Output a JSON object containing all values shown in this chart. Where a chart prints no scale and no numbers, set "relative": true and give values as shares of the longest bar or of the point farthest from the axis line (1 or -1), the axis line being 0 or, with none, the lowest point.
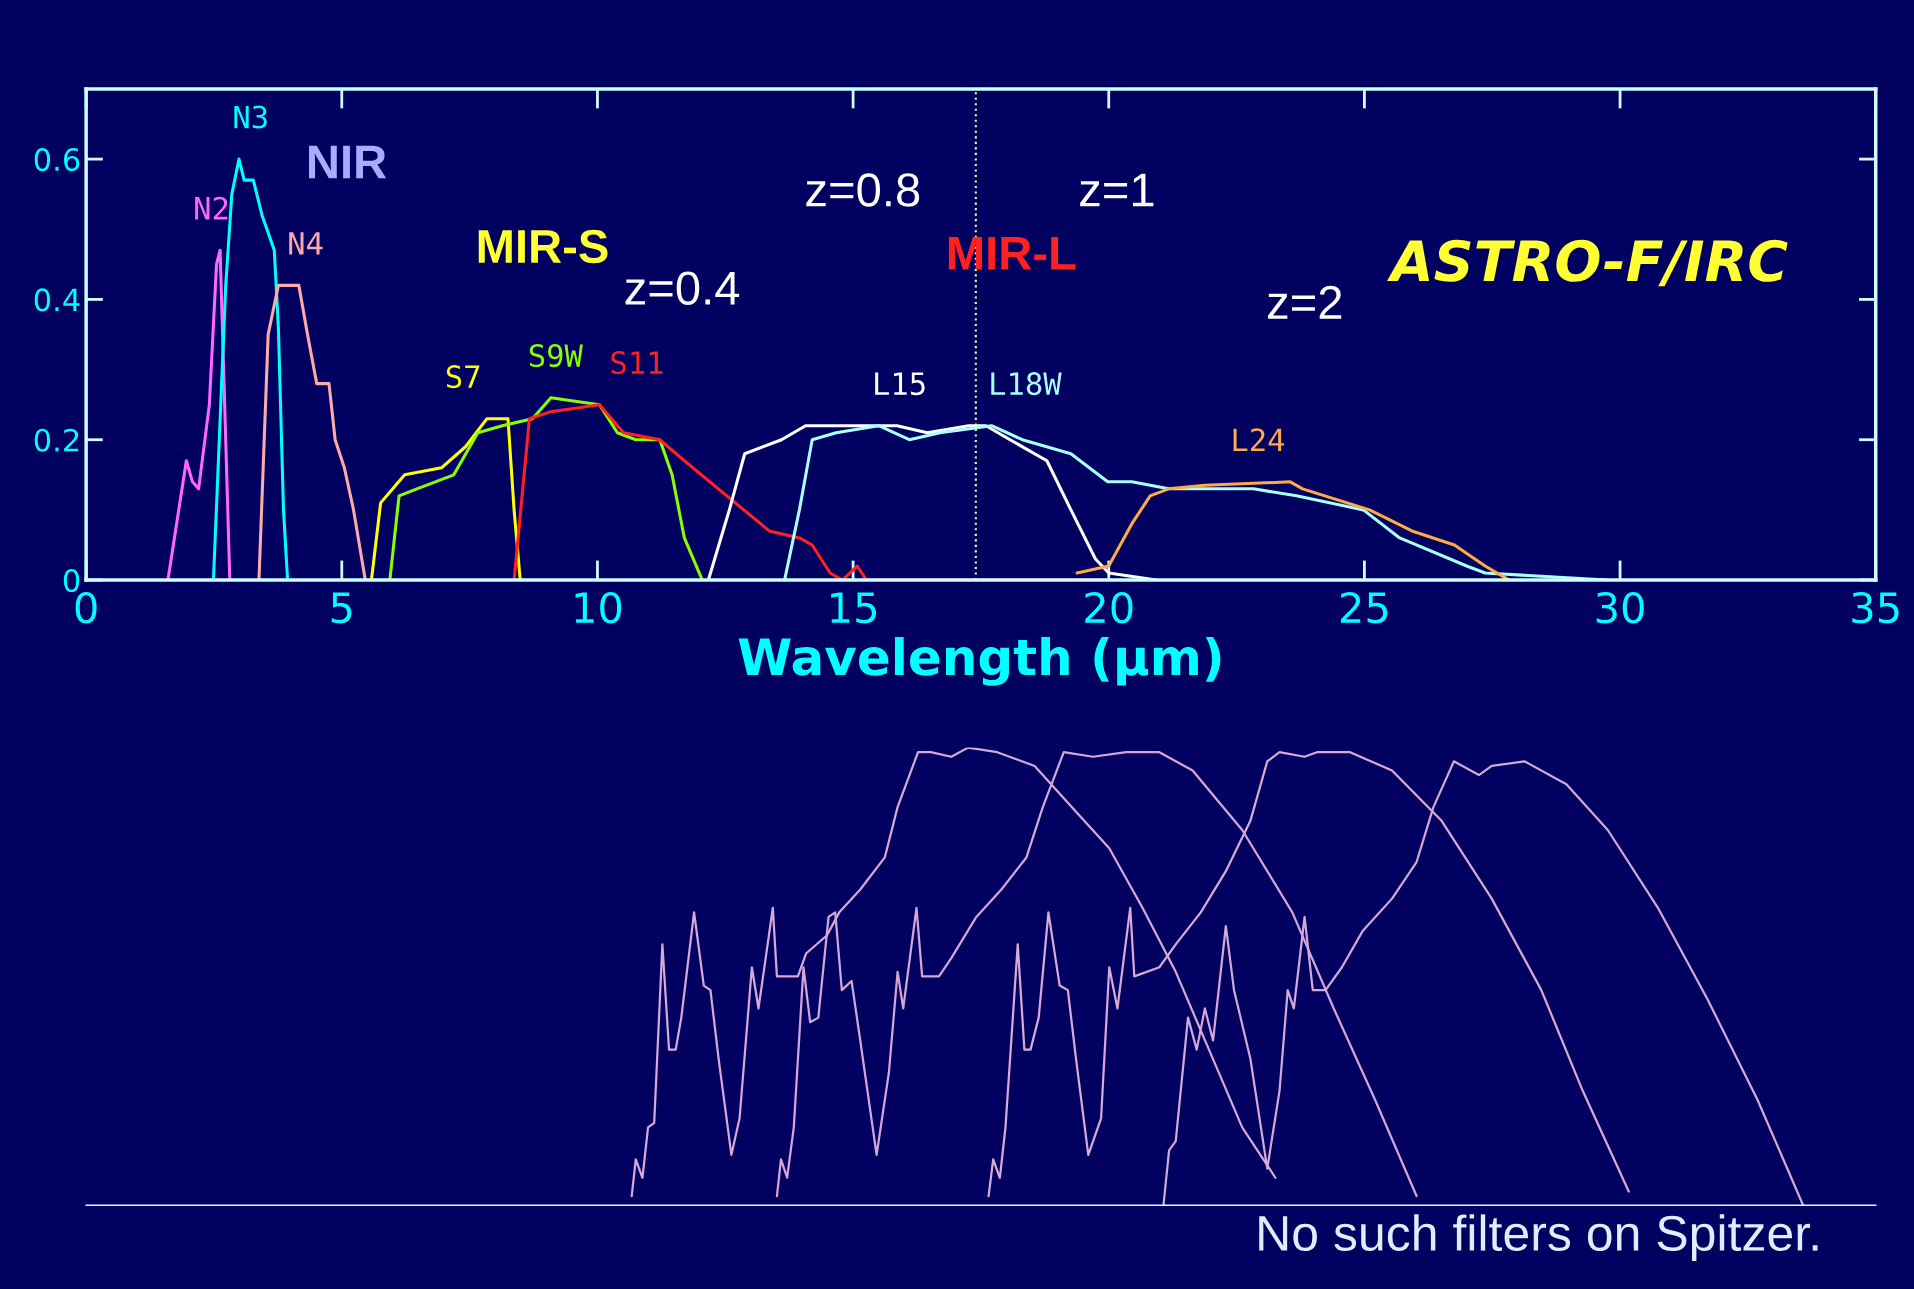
{
  "chart_data": [
    {
      "type": "line",
      "title": "ASTRO-F/IRC",
      "xlabel": "Wavelength (µm)",
      "xlim": [
        0,
        35
      ],
      "xticks": [
        0,
        5,
        10,
        15,
        20,
        25,
        30,
        35
      ],
      "ylim": [
        0,
        0.7
      ],
      "yticks": [
        0,
        0.2,
        0.4,
        0.6
      ],
      "grid": false,
      "marker": "none",
      "line_style": "solid",
      "series": [
        {
          "name": "N2",
          "color": "#ff66ff",
          "x": [
            1.6,
            1.96,
            2.08,
            2.2,
            2.41,
            2.55,
            2.62,
            2.73,
            2.81
          ],
          "values": [
            0,
            0.17,
            0.14,
            0.13,
            0.25,
            0.45,
            0.47,
            0.2,
            0
          ]
        },
        {
          "name": "N3",
          "color": "#00ffff",
          "x": [
            2.49,
            2.73,
            2.85,
            2.99,
            3.09,
            3.27,
            3.44,
            3.68,
            3.76,
            3.86,
            3.94
          ],
          "values": [
            0,
            0.42,
            0.55,
            0.6,
            0.57,
            0.57,
            0.52,
            0.47,
            0.36,
            0.1,
            0
          ]
        },
        {
          "name": "N4",
          "color": "#ffaaaa",
          "x": [
            3.38,
            3.56,
            3.76,
            4.16,
            4.33,
            4.51,
            4.75,
            4.87,
            5.05,
            5.23,
            5.46
          ],
          "values": [
            0,
            0.35,
            0.42,
            0.42,
            0.35,
            0.28,
            0.28,
            0.2,
            0.16,
            0.1,
            0
          ]
        },
        {
          "name": "S7",
          "color": "#ffff00",
          "x": [
            5.58,
            5.76,
            6.23,
            6.95,
            7.42,
            7.84,
            8.25,
            8.37,
            8.49
          ],
          "values": [
            0,
            0.11,
            0.15,
            0.16,
            0.19,
            0.23,
            0.23,
            0.1,
            0
          ]
        },
        {
          "name": "S9W",
          "color": "#88ff00",
          "x": [
            5.94,
            6.12,
            6.47,
            7.19,
            7.66,
            8.14,
            8.73,
            9.09,
            10.04,
            10.39,
            10.75,
            11.22,
            11.46,
            11.7,
            12.05
          ],
          "values": [
            0,
            0.12,
            0.13,
            0.15,
            0.21,
            0.22,
            0.23,
            0.26,
            0.25,
            0.21,
            0.2,
            0.2,
            0.15,
            0.06,
            0
          ]
        },
        {
          "name": "S11",
          "color": "#ff2020",
          "x": [
            8.37,
            8.67,
            9.09,
            10.04,
            10.51,
            11.22,
            11.7,
            12.53,
            13.36,
            13.95,
            14.2,
            14.55,
            14.79,
            15.08,
            15.26,
            20.0
          ],
          "values": [
            0,
            0.23,
            0.24,
            0.25,
            0.21,
            0.2,
            0.17,
            0.12,
            0.07,
            0.06,
            0.05,
            0.01,
            0,
            0.02,
            0,
            0
          ]
        },
        {
          "name": "L15",
          "color": "#ffffff",
          "x": [
            12.17,
            12.58,
            12.88,
            13.6,
            14.07,
            14.55,
            15.26,
            15.86,
            16.45,
            17.26,
            17.6,
            18.07,
            18.79,
            19.26,
            19.74,
            20.0,
            20.93
          ],
          "values": [
            0,
            0.1,
            0.18,
            0.2,
            0.22,
            0.22,
            0.22,
            0.22,
            0.21,
            0.22,
            0.22,
            0.2,
            0.17,
            0.1,
            0.03,
            0.01,
            0
          ]
        },
        {
          "name": "L18W",
          "color": "#aaffff",
          "x": [
            13.66,
            13.95,
            14.2,
            14.67,
            15.5,
            16.1,
            16.7,
            17.71,
            18.31,
            19.26,
            19.98,
            20.45,
            21.17,
            22.83,
            23.67,
            24.98,
            25.69,
            27.0,
            27.36,
            29.74
          ],
          "values": [
            0,
            0.1,
            0.2,
            0.21,
            0.22,
            0.2,
            0.21,
            0.22,
            0.2,
            0.18,
            0.14,
            0.14,
            0.13,
            0.13,
            0.12,
            0.1,
            0.06,
            0.02,
            0.01,
            0
          ]
        },
        {
          "name": "L24",
          "color": "#ffaa44",
          "x": [
            19.38,
            20.0,
            20.45,
            20.81,
            21.17,
            21.88,
            23.55,
            23.79,
            25.1,
            25.93,
            26.76,
            27.36,
            27.83
          ],
          "values": [
            0.01,
            0.02,
            0.08,
            0.12,
            0.13,
            0.135,
            0.14,
            0.13,
            0.1,
            0.07,
            0.05,
            0.02,
            0
          ]
        }
      ],
      "ref_lines": [
        {
          "axis": "x",
          "value": 17.4,
          "color": "#ffff99",
          "line_style": "dotted"
        }
      ],
      "annotations": [
        "NIR",
        "MIR-S",
        "MIR-L",
        "z=0.4",
        "z=0.8",
        "z=1",
        "z=2"
      ]
    },
    {
      "type": "line",
      "relative": true,
      "xlim": [
        0,
        35
      ],
      "grid": false,
      "marker": "none",
      "line_style": "solid",
      "series": [
        {
          "color": "#d8a8d8",
          "x": [
            10.67,
            10.75,
            10.88,
            10.99,
            11.11,
            11.27,
            11.4,
            11.53,
            11.64,
            11.89,
            12.08,
            12.21,
            12.37,
            12.62,
            12.78,
            13.02,
            13.15,
            13.43,
            13.51,
            13.92,
            14.08,
            14.49,
            14.73,
            15.14,
            15.62,
            15.87,
            16.27,
            16.52,
            16.92,
            17.25,
            17.82,
            18.55,
            19.36,
            20.01,
            20.66,
            21.31,
            21.96,
            22.61,
            23.26
          ],
          "values": [
            0.02,
            0.1,
            0.06,
            0.17,
            0.18,
            0.57,
            0.34,
            0.34,
            0.41,
            0.64,
            0.48,
            0.47,
            0.32,
            0.11,
            0.19,
            0.52,
            0.43,
            0.65,
            0.5,
            0.5,
            0.55,
            0.59,
            0.64,
            0.69,
            0.76,
            0.87,
            0.99,
            0.99,
            0.98,
            1.0,
            0.99,
            0.96,
            0.86,
            0.78,
            0.65,
            0.51,
            0.34,
            0.17,
            0.06
          ]
        },
        {
          "color": "#d6a6da",
          "x": [
            13.51,
            13.59,
            13.71,
            13.84,
            14.03,
            14.16,
            14.32,
            14.52,
            14.65,
            14.78,
            14.97,
            15.14,
            15.46,
            15.7,
            15.87,
            15.98,
            16.24,
            16.35,
            16.68,
            16.92,
            17.41,
            17.9,
            18.39,
            18.71,
            19.12,
            19.69,
            20.34,
            20.99,
            21.64,
            22.61,
            23.59,
            24.4,
            25.21,
            26.02
          ],
          "values": [
            0.02,
            0.1,
            0.06,
            0.17,
            0.52,
            0.4,
            0.41,
            0.63,
            0.64,
            0.47,
            0.49,
            0.36,
            0.11,
            0.29,
            0.51,
            0.43,
            0.65,
            0.5,
            0.5,
            0.54,
            0.63,
            0.69,
            0.76,
            0.87,
            0.99,
            0.98,
            0.99,
            0.99,
            0.95,
            0.82,
            0.64,
            0.43,
            0.23,
            0.02
          ]
        },
        {
          "color": "#daaad6",
          "x": [
            17.65,
            17.74,
            17.87,
            17.98,
            18.22,
            18.35,
            18.47,
            18.63,
            18.82,
            19.04,
            19.2,
            19.36,
            19.6,
            19.85,
            20.01,
            20.17,
            20.42,
            20.5,
            20.99,
            21.31,
            21.8,
            22.29,
            22.77,
            23.1,
            23.34,
            23.83,
            24.07,
            24.72,
            25.54,
            26.51,
            27.49,
            28.46,
            29.27,
            30.17
          ],
          "values": [
            0.02,
            0.1,
            0.06,
            0.17,
            0.57,
            0.34,
            0.34,
            0.41,
            0.64,
            0.48,
            0.47,
            0.32,
            0.11,
            0.19,
            0.52,
            0.43,
            0.65,
            0.5,
            0.52,
            0.57,
            0.64,
            0.73,
            0.84,
            0.97,
            0.99,
            0.98,
            0.99,
            0.99,
            0.95,
            0.84,
            0.67,
            0.47,
            0.25,
            0.03
          ]
        },
        {
          "color": "#d4a8d8",
          "x": [
            21.07,
            21.18,
            21.31,
            21.55,
            21.72,
            21.88,
            22.04,
            22.29,
            22.45,
            22.77,
            23.1,
            23.34,
            23.5,
            23.62,
            23.83,
            23.99,
            24.24,
            24.56,
            24.97,
            25.54,
            26.02,
            26.35,
            26.75,
            27.24,
            27.49,
            28.13,
            28.95,
            29.76,
            30.74,
            31.71,
            32.69,
            33.58
          ],
          "values": [
            0,
            0.12,
            0.14,
            0.41,
            0.34,
            0.43,
            0.36,
            0.61,
            0.47,
            0.32,
            0.08,
            0.25,
            0.47,
            0.43,
            0.63,
            0.47,
            0.47,
            0.52,
            0.6,
            0.67,
            0.75,
            0.87,
            0.97,
            0.94,
            0.96,
            0.97,
            0.92,
            0.82,
            0.65,
            0.45,
            0.23,
            0
          ]
        }
      ],
      "annotations": [
        "No such filters on Spitzer."
      ]
    }
  ]
}
